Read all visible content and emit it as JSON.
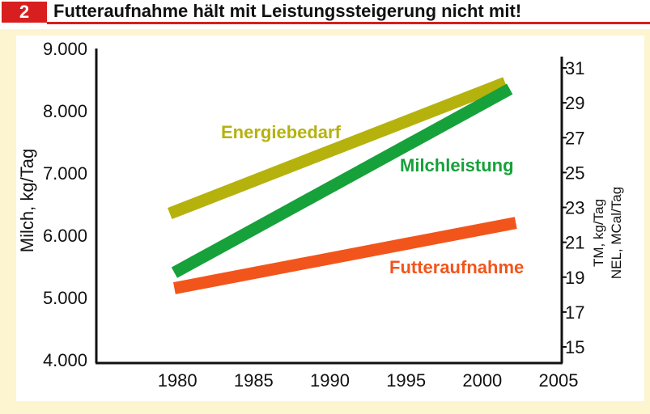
{
  "header": {
    "number": "2",
    "title": "Futteraufnahme hält mit Leistungssteigerung nicht mit!"
  },
  "colors": {
    "badge": "#d81e1e",
    "panel": "#fdf5d0",
    "energiebedarf": "#b5b20e",
    "milchleistung": "#16a13a",
    "futteraufnahme": "#f2551b"
  },
  "chart_data": {
    "type": "line",
    "xlabel": "",
    "x_ticks": [
      "1980",
      "1985",
      "1990",
      "1995",
      "2000",
      "2005"
    ],
    "xlim": [
      1975,
      2005
    ],
    "y_left": {
      "label": "Milch, kg/Tag",
      "ticks": [
        "4.000",
        "5.000",
        "6.000",
        "7.000",
        "8.000",
        "9.000"
      ],
      "range": [
        4000,
        9000
      ]
    },
    "y_right": {
      "label_line1": "TM, kg/Tag",
      "label_line2": "NEL, MCal/Tag",
      "ticks": [
        "15",
        "17",
        "19",
        "21",
        "23",
        "25",
        "27",
        "29",
        "31"
      ],
      "range": [
        14,
        31.5
      ]
    },
    "series": [
      {
        "name": "Energiebedarf",
        "axis": "left",
        "color": "#b5b20e",
        "x": [
          1979.5,
          2001.5
        ],
        "y": [
          6350,
          8450
        ]
      },
      {
        "name": "Milchleistung",
        "axis": "left",
        "color": "#16a13a",
        "x": [
          1979.8,
          2001.8
        ],
        "y": [
          5400,
          8350
        ]
      },
      {
        "name": "Futteraufnahme",
        "axis": "left",
        "color": "#f2551b",
        "x": [
          1979.8,
          2002.2
        ],
        "y": [
          5150,
          6200
        ]
      }
    ],
    "grid": false,
    "legend": "inline"
  }
}
